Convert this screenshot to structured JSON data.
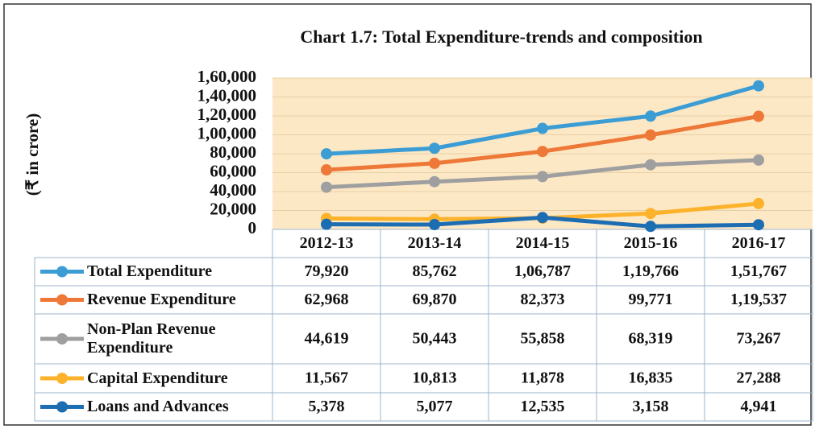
{
  "chart_data": {
    "type": "line",
    "title": "Chart 1.7: Total Expenditure-trends and composition",
    "y_label": "(₹ in crore)",
    "categories": [
      "2012-13",
      "2013-14",
      "2014-15",
      "2015-16",
      "2016-17"
    ],
    "series": [
      {
        "name": "Total Expenditure",
        "color": "#3c9dd5",
        "values": [
          79920,
          85762,
          106787,
          119766,
          151767
        ],
        "value_labels": [
          "79,920",
          "85,762",
          "1,06,787",
          "1,19,766",
          "1,51,767"
        ]
      },
      {
        "name": "Revenue Expenditure",
        "color": "#ee7837",
        "values": [
          62968,
          69870,
          82373,
          99771,
          119537
        ],
        "value_labels": [
          "62,968",
          "69,870",
          "82,373",
          "99,771",
          "1,19,537"
        ]
      },
      {
        "name": "Non-Plan Revenue Expenditure",
        "color": "#9f9f9f",
        "values": [
          44619,
          50443,
          55858,
          68319,
          73267
        ],
        "value_labels": [
          "44,619",
          "50,443",
          "55,858",
          "68,319",
          "73,267"
        ]
      },
      {
        "name": "Capital Expenditure",
        "color": "#fcb32b",
        "values": [
          11567,
          10813,
          11878,
          16835,
          27288
        ],
        "value_labels": [
          "11,567",
          "10,813",
          "11,878",
          "16,835",
          "27,288"
        ]
      },
      {
        "name": "Loans and Advances",
        "color": "#1d6db3",
        "values": [
          5378,
          5077,
          12535,
          3158,
          4941
        ],
        "value_labels": [
          "5,378",
          "5,077",
          "12,535",
          "3,158",
          "4,941"
        ]
      }
    ],
    "ylim": [
      0,
      160000
    ],
    "yticks": [
      0,
      {
        "value": 20000,
        "label": "20,000"
      },
      {
        "value": 40000,
        "label": "40,000"
      },
      {
        "value": 60000,
        "label": "60,000"
      },
      {
        "value": 80000,
        "label": "80,000"
      },
      {
        "value": 100000,
        "label": "1,00,000"
      },
      {
        "value": 120000,
        "label": "1,20,000"
      },
      {
        "value": 140000,
        "label": "1,40,000"
      },
      {
        "value": 160000,
        "label": "1,60,000"
      }
    ],
    "grid": true
  }
}
